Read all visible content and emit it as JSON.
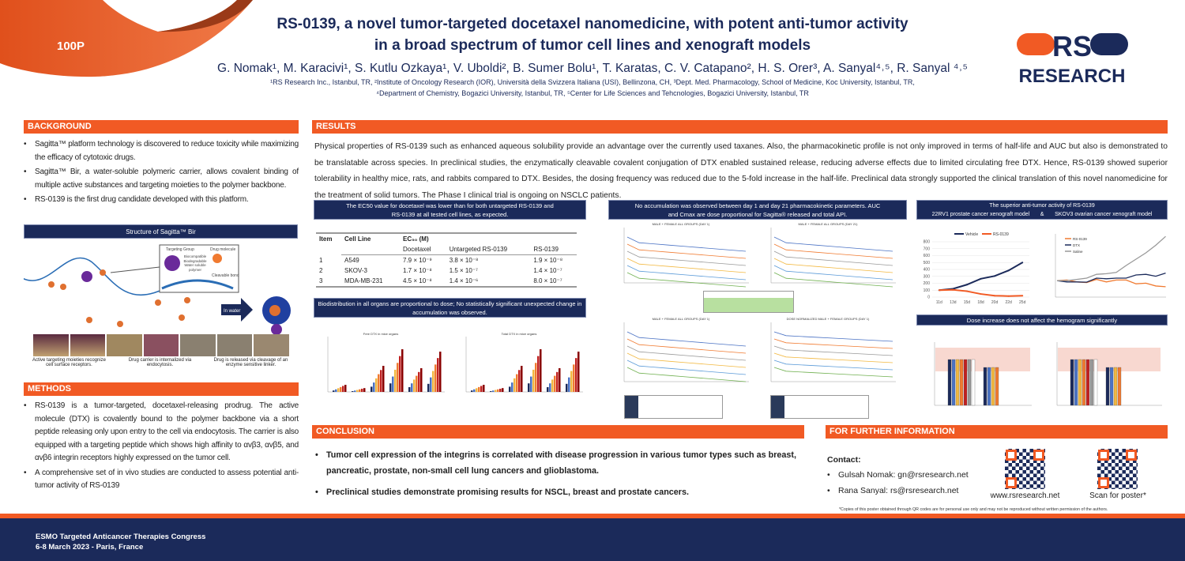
{
  "header": {
    "poster_number": "100P",
    "title_line1": "RS-0139, a novel tumor-targeted docetaxel nanomedicine, with potent anti-tumor activity",
    "title_line2": "in a broad spectrum of tumor cell lines and xenograft models",
    "authors": "G. Nomak¹, M. Karacivi¹, S. Kutlu Ozkaya¹, V. Uboldi², B. Sumer Bolu¹, T. Karatas, C. V. Catapano², H. S. Orer³, A. Sanyal⁴˒⁵, R. Sanyal ⁴˒⁵",
    "affiliations_line1": "¹RS Research Inc., Istanbul, TR, ²Institute of Oncology Research (IOR), Università della Svizzera Italiana (USI), Bellinzona, CH, ³Dept. Med. Pharmacology, School of Medicine, Koc University, Istanbul, TR,",
    "affiliations_line2": "⁴Department of Chemistry, Bogazici University, Istanbul, TR, ⁵Center for Life Sciences and Tehcnologies, Bogazici University, Istanbul, TR",
    "logo_text": "RS RESEARCH",
    "colors": {
      "accent": "#f15a24",
      "navy": "#1b2a5a"
    }
  },
  "background": {
    "heading": "BACKGROUND",
    "bullets": [
      "Sagitta™ platform technology is discovered to reduce toxicity while maximizing the efficacy of cytotoxic drugs.",
      "Sagitta™ Bir, a water-soluble polymeric carrier, allows covalent binding of multiple active substances and targeting moieties to the polymer backbone.",
      "RS-0139 is the first drug candidate developed with this platform."
    ],
    "figure": {
      "title": "Structure of Sagitta™ Bir",
      "labels": {
        "targeting": "Targeting Group",
        "drug": "Drug molecule",
        "polymer": "Biocompatible Biodegradable Water soluble polymer",
        "bond": "Cleavable bond",
        "arrow": "In water"
      },
      "captions": [
        "Active targeting moieties recognize cell surface receptors.",
        "Drug carrier is internalized via endocytosis.",
        "Drug is released via cleavage of an enzyme sensitive linker."
      ]
    }
  },
  "methods": {
    "heading": "METHODS",
    "bullets": [
      "RS-0139 is a tumor-targeted, docetaxel-releasing prodrug. The active molecule (DTX) is covalently bound to the polymer backbone via a short peptide releasing only upon entry to the cell via endocytosis. The carrier is also equipped with a targeting peptide which shows  high affinity to αvβ3, αvβ5, and αvβ6 integrin receptors highly expressed on the tumor cell.",
      "A comprehensive set of in vivo studies are conducted to assess potential anti-tumor activity of RS-0139"
    ]
  },
  "results": {
    "heading": "RESULTS",
    "paragraph": "Physical properties of RS-0139 such as enhanced aqueous solubility provide an advantage over the currently used taxanes. Also, the pharmacokinetic profile is not only improved in terms of half-life and AUC but also is demonstrated to be translatable across species. In preclinical studies, the enzymatically cleavable covalent conjugation of DTX enabled sustained release, reducing adverse effects due to limited circulating free DTX. Hence, RS-0139 showed superior tolerability in healthy mice, rats, and rabbits compared to DTX. Besides, the dosing frequency was reduced due to the 5-fold increase in the half-life. Preclinical data strongly supported the clinical translation of this novel nanomedicine for the treatment of solid tumors. The Phase I clinical trial is ongoing on NSCLC patients.",
    "ec50": {
      "banner": "The EC50 value for docetaxel was lower than for both untargeted RS-0139 and RS-0139 at all tested cell lines, as expected.",
      "headers": [
        "Item",
        "Cell Line",
        "EC₅₀ (M)"
      ],
      "subheaders": [
        "Docetaxel",
        "Untargeted RS-0139",
        "RS-0139"
      ],
      "rows": [
        [
          "1",
          "A549",
          "7.9 × 10⁻⁹",
          "3.8 × 10⁻⁸",
          "1.9 × 10⁻⁸"
        ],
        [
          "2",
          "SKOV-3",
          "1.7 × 10⁻⁸",
          "1.5 × 10⁻⁷",
          "1.4 × 10⁻⁷"
        ],
        [
          "3",
          "MDA-MB-231",
          "4.5 × 10⁻⁸",
          "1.4 × 10⁻⁶",
          "8.0 × 10⁻⁷"
        ]
      ]
    },
    "biodistribution": {
      "banner": "Biodistribution in all organs are proportional to dose; No statistically significant unexpected change in accumulation was observed.",
      "chart_titles": [
        "Free DTX in mice organs",
        "Total DTX in mice organs"
      ]
    },
    "pk": {
      "banner": "No accumulation was observed between day 1 and day 21 pharmacokinetic parameters. AUC and Cmax are dose proportional for Sagitta® released and total API.",
      "chart_titles": [
        "MALE + FEMALE ALL GROUPS (DAY 1)",
        "MALE + FEMALE ALL GROUPS (DAY 21)",
        "MALE + FEMALE ALL GROUPS (DAY 1)",
        "DOSE NORMALIZED MALE + FEMALE GROUPS (DAY 1)"
      ]
    },
    "xenograft": {
      "banner_line1": "The superior anti-tumor activity of RS-0139",
      "banner_line2": "22RV1 prostate cancer xenograft model       &       SKOV3 ovarian cancer xenograft model",
      "skov3_legend": [
        "RS-0139",
        "DTX",
        "Saline"
      ]
    },
    "hemogram": {
      "banner": "Dose increase does not affect the hemogram significantly"
    }
  },
  "chart_data": [
    {
      "type": "line",
      "x": [
        "11d",
        "13d",
        "15d",
        "18d",
        "20d",
        "22d",
        "25d"
      ],
      "series": [
        {
          "name": "Vehicle",
          "values": [
            100,
            120,
            180,
            265,
            305,
            385,
            500
          ],
          "color": "#1b2a5a"
        },
        {
          "name": "RS-0139",
          "values": [
            100,
            105,
            85,
            45,
            20,
            15,
            20
          ],
          "color": "#f15a24"
        }
      ],
      "ylim": [
        0,
        800
      ],
      "yticks": [
        0,
        100,
        200,
        300,
        400,
        500,
        600,
        700,
        800
      ],
      "grid": true,
      "legend": "top"
    }
  ],
  "conclusion": {
    "heading": "CONCLUSION",
    "bullets": [
      "Tumor cell expression of the integrins is correlated with disease progression in various tumor types such as breast, pancreatic, prostate, non-small cell lung cancers and glioblastoma.",
      "Preclinical studies demonstrate promising results for NSCL, breast and prostate cancers."
    ]
  },
  "info": {
    "heading": "FOR FURTHER INFORMATION",
    "contact_label": "Contact:",
    "contacts": [
      "Gulsah Nomak: gn@rsresearch.net",
      "Rana Sanyal: rs@rsresearch.net"
    ],
    "qr_captions": [
      "www.rsresearch.net",
      "Scan for poster*"
    ],
    "disclaimer": "*Copies of this poster obtained through QR codes are for personal use only and may not be reproduced without written permission of the authors."
  },
  "footer": {
    "line1": "ESMO Targeted Anticancer Therapies Congress",
    "line2": "6-8 March 2023 - Paris, France"
  }
}
